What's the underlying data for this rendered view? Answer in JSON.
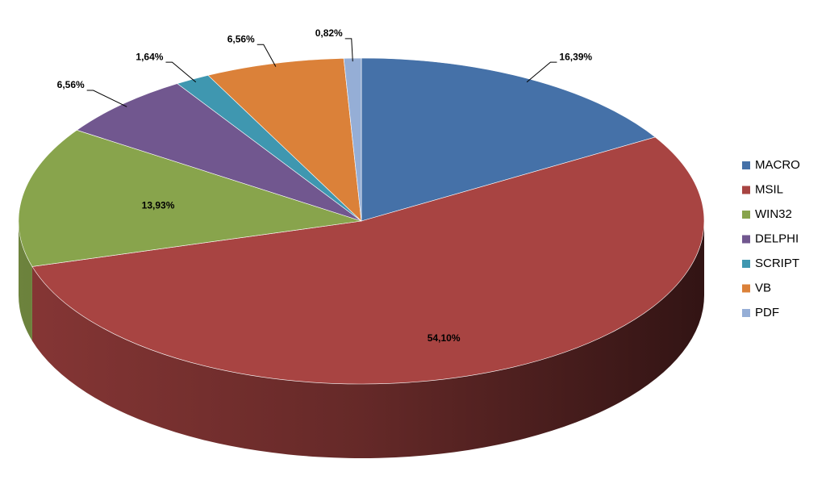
{
  "chart_data": {
    "type": "pie3d",
    "categories": [
      "MACRO",
      "MSIL",
      "WIN32",
      "DELPHI",
      "SCRIPT",
      "VB",
      "PDF"
    ],
    "values": [
      16.39,
      54.1,
      13.93,
      6.56,
      1.64,
      6.56,
      0.82
    ],
    "value_labels": [
      "16,39%",
      "54,10%",
      "13,93%",
      "6,56%",
      "1,64%",
      "6,56%",
      "0,82%"
    ],
    "colors": [
      "#4571a8",
      "#a84442",
      "#88a44c",
      "#71578f",
      "#3f97b0",
      "#db8139",
      "#95aed6"
    ],
    "legend": "right"
  }
}
